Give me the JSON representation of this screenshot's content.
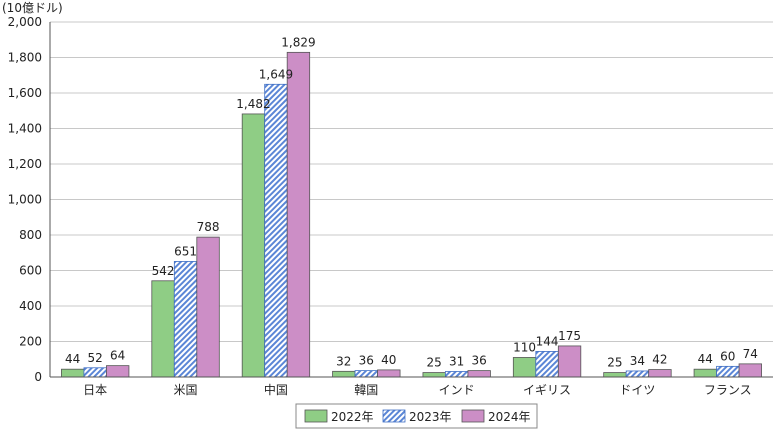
{
  "chart_data": {
    "type": "bar",
    "unit_label": "(10億ドル)",
    "categories": [
      "日本",
      "米国",
      "中国",
      "韓国",
      "インド",
      "イギリス",
      "ドイツ",
      "フランス"
    ],
    "series": [
      {
        "name": "2022年",
        "color": "#8fcd85",
        "pattern": "solid",
        "values": [
          44,
          542,
          1482,
          32,
          25,
          110,
          25,
          44
        ],
        "labels": [
          "44",
          "542",
          "1,482",
          "32",
          "25",
          "110",
          "25",
          "44"
        ]
      },
      {
        "name": "2023年",
        "color": "#5b86d6",
        "pattern": "hatch",
        "values": [
          52,
          651,
          1649,
          36,
          31,
          144,
          34,
          60
        ],
        "labels": [
          "52",
          "651",
          "1,649",
          "36",
          "31",
          "144",
          "34",
          "60"
        ]
      },
      {
        "name": "2024年",
        "color": "#cc8ec6",
        "pattern": "solid",
        "values": [
          64,
          788,
          1829,
          40,
          36,
          175,
          42,
          74
        ],
        "labels": [
          "64",
          "788",
          "1,829",
          "40",
          "36",
          "175",
          "42",
          "74"
        ]
      }
    ],
    "ylim": [
      0,
      2000
    ],
    "yticks": [
      0,
      200,
      400,
      600,
      800,
      1000,
      1200,
      1400,
      1600,
      1800,
      2000
    ],
    "ytick_labels": [
      "0",
      "200",
      "400",
      "600",
      "800",
      "1,000",
      "1,200",
      "1,400",
      "1,600",
      "1,800",
      "2,000"
    ],
    "grid": true,
    "legend_position": "bottom"
  }
}
